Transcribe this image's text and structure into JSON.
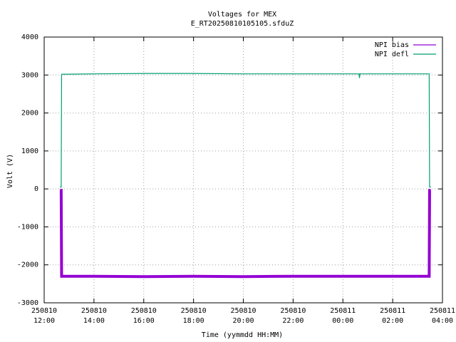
{
  "chart_data": {
    "type": "line",
    "title": "Voltages for MEX",
    "subtitle": "E_RT20250810105105.sfduZ",
    "xlabel": "Time (yymmdd HH:MM)",
    "ylabel": "Volt (V)",
    "x": [
      "250810 12:38",
      "250810 12:41",
      "250810 12:42",
      "250810 14:00",
      "250810 16:00",
      "250810 18:00",
      "250810 20:00",
      "250810 22:00",
      "250811 00:00",
      "250811 00:39",
      "250811 00:40",
      "250811 00:41",
      "250811 02:00",
      "250811 03:28",
      "250811 03:29",
      "250811 03:32"
    ],
    "series": [
      {
        "name": "NPI bias",
        "color": "#9400d3",
        "values": [
          -40,
          -40,
          -2300,
          -2300,
          -2310,
          -2300,
          -2310,
          -2300,
          -2300,
          -2300,
          -2300,
          -2300,
          -2300,
          -2300,
          -40,
          -40
        ]
      },
      {
        "name": "NPI defl",
        "color": "#009e73",
        "values": [
          50,
          50,
          3020,
          3030,
          3040,
          3040,
          3030,
          3030,
          3030,
          3030,
          2920,
          3030,
          3030,
          3030,
          50,
          50
        ]
      }
    ],
    "xlim": [
      "250810 12:00",
      "250811 04:00"
    ],
    "xticks": [
      "250810 12:00",
      "250810 14:00",
      "250810 16:00",
      "250810 18:00",
      "250810 20:00",
      "250810 22:00",
      "250811 00:00",
      "250811 02:00",
      "250811 04:00"
    ],
    "ylim": [
      -3000,
      4000
    ],
    "yticks": [
      -3000,
      -2000,
      -1000,
      0,
      1000,
      2000,
      3000,
      4000
    ],
    "grid": true,
    "legend": "top-right"
  }
}
